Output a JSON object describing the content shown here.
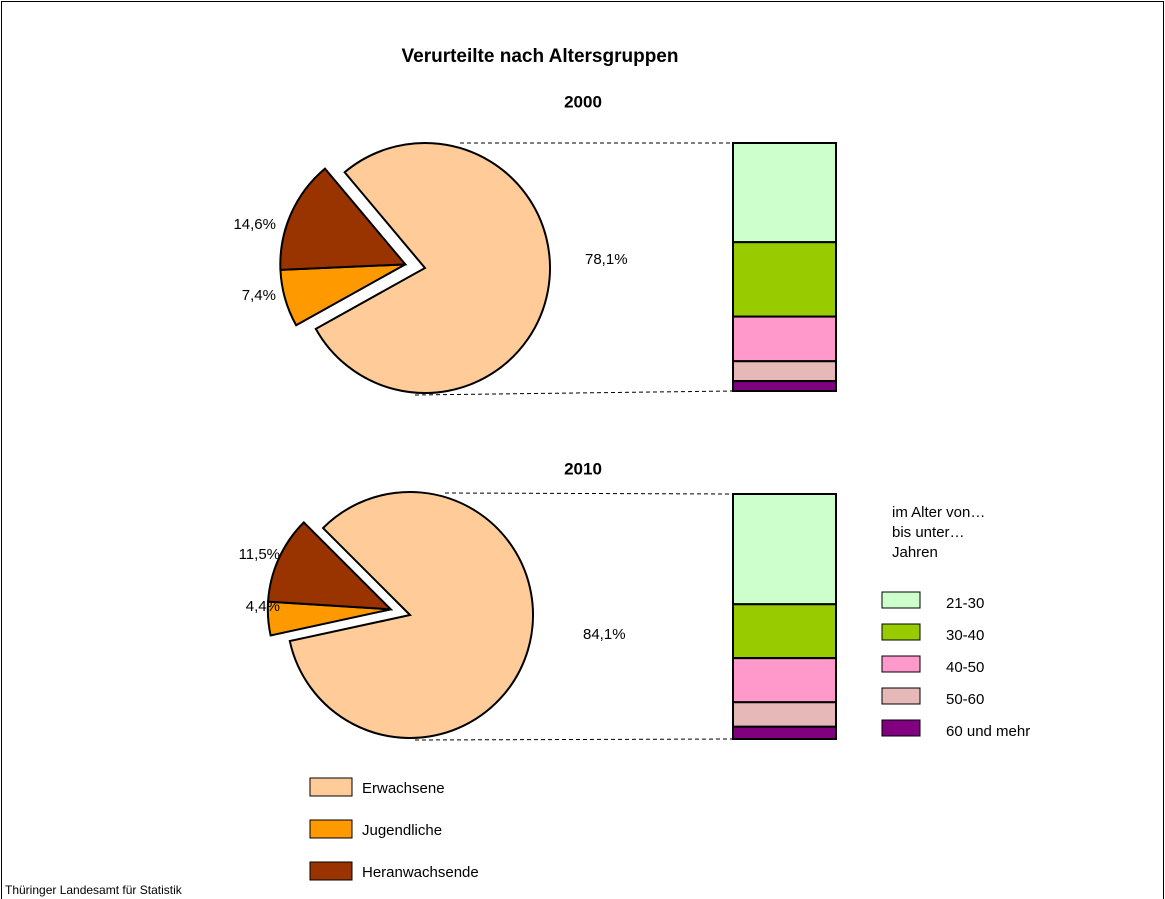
{
  "chart_data": {
    "type": "bar-of-pie",
    "title": "Verurteilte nach Altersgruppen",
    "pie_series": [
      {
        "name": "Erwachsene",
        "color": "#ffcc99"
      },
      {
        "name": "Jugendliche",
        "color": "#ff9900"
      },
      {
        "name": "Heranwachsende",
        "color": "#993300"
      }
    ],
    "bar_legend_title": [
      "im Alter von…",
      "bis unter…",
      "Jahren"
    ],
    "bar_series": [
      {
        "name": "21-30",
        "color": "#ccffcc"
      },
      {
        "name": "30-40",
        "color": "#99cc00"
      },
      {
        "name": "40-50",
        "color": "#ff99cc"
      },
      {
        "name": "50-60",
        "color": "#e6b8b8"
      },
      {
        "name": "60 und mehr",
        "color": "#800080"
      }
    ],
    "panels": [
      {
        "subtitle": "2000",
        "pie_values": [
          78.1,
          7.4,
          14.6
        ],
        "pie_value_labels": [
          "78,1%",
          "7,4%",
          "14,6%"
        ],
        "bar_values": [
          40,
          30,
          18,
          8,
          4
        ]
      },
      {
        "subtitle": "2010",
        "pie_values": [
          84.1,
          4.4,
          11.5
        ],
        "pie_value_labels": [
          "84,1%",
          "4,4%",
          "11,5%"
        ],
        "bar_values": [
          45,
          22,
          18,
          10,
          5
        ]
      }
    ],
    "source": "Thüringer Landesamt für Statistik"
  }
}
